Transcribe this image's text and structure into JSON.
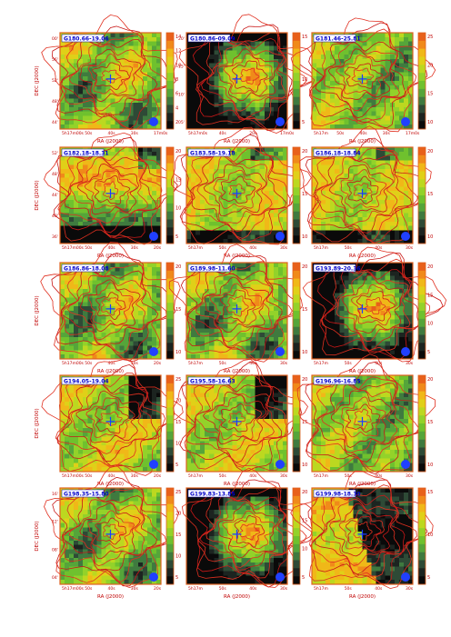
{
  "figure": {
    "x_axis_label": "RA (J2000)",
    "y_axis_label": "DEC (J2000)",
    "panels": [
      {
        "id": "G180.66-19.06",
        "colorbar_ticks": [
          "14",
          "12",
          "10",
          "8",
          "6",
          "4",
          "2"
        ],
        "ra_ticks": [
          "5h17m00s",
          "50s",
          "40s",
          "30s",
          "17m0s"
        ],
        "dec_ticks": [
          "00'",
          "56'",
          "52'",
          "48'",
          "44'"
        ],
        "pattern": "mixed"
      },
      {
        "id": "G180.86-09.09",
        "colorbar_ticks": [
          "15",
          "10",
          "5"
        ],
        "ra_ticks": [
          "5h17m0s",
          "40s",
          "20s",
          "17m0s"
        ],
        "dec_ticks": [
          "20'",
          "15'",
          "10'",
          "05'"
        ],
        "pattern": "core"
      },
      {
        "id": "G181.46-25.81",
        "colorbar_ticks": [
          "25",
          "20",
          "15",
          "10"
        ],
        "ra_ticks": [
          "5h17m",
          "50s",
          "40s",
          "30s",
          "17m0s"
        ],
        "dec_ticks": [
          "",
          "",
          "",
          ""
        ],
        "pattern": "green"
      },
      {
        "id": "G182.18-18.31",
        "colorbar_ticks": [
          "20",
          "15",
          "10",
          "5"
        ],
        "ra_ticks": [
          "5h17m00s",
          "50s",
          "40s",
          "30s",
          "20s"
        ],
        "dec_ticks": [
          "52'",
          "48'",
          "44'",
          "40'",
          "36'"
        ],
        "pattern": "band"
      },
      {
        "id": "G183.58-19.18",
        "colorbar_ticks": [
          "20",
          "15",
          "10"
        ],
        "ra_ticks": [
          "5h17m",
          "50s",
          "40s",
          "30s"
        ],
        "dec_ticks": [
          "",
          "",
          "",
          ""
        ],
        "pattern": "bottom-dark"
      },
      {
        "id": "G186.18-18.84",
        "colorbar_ticks": [
          "20",
          "15",
          "10"
        ],
        "ra_ticks": [
          "5h17m",
          "50s",
          "40s",
          "30s"
        ],
        "dec_ticks": [
          "",
          "",
          "",
          ""
        ],
        "pattern": "bottom-dark"
      },
      {
        "id": "G186.86-18.08",
        "colorbar_ticks": [
          "20",
          "15",
          "10"
        ],
        "ra_ticks": [
          "5h17m00s",
          "50s",
          "40s",
          "30s",
          "20s"
        ],
        "dec_ticks": [
          "",
          "",
          "",
          ""
        ],
        "pattern": "mixed"
      },
      {
        "id": "G189.98-11.60",
        "colorbar_ticks": [
          "20",
          "15",
          "10"
        ],
        "ra_ticks": [
          "5h17m",
          "50s",
          "40s",
          "30s"
        ],
        "dec_ticks": [
          "",
          "",
          "",
          ""
        ],
        "pattern": "mixed"
      },
      {
        "id": "G193.89-20.36",
        "colorbar_ticks": [
          "20",
          "15",
          "10",
          "5"
        ],
        "ra_ticks": [
          "5h17m",
          "50s",
          "40s",
          "30s"
        ],
        "dec_ticks": [
          "",
          "",
          "",
          ""
        ],
        "pattern": "core"
      },
      {
        "id": "G194.05-19.04",
        "colorbar_ticks": [
          "25",
          "20",
          "15",
          "10",
          "5"
        ],
        "ra_ticks": [
          "5h17m00s",
          "50s",
          "40s",
          "30s",
          "20s"
        ],
        "dec_ticks": [
          "",
          "",
          "",
          ""
        ],
        "pattern": "topright-dark"
      },
      {
        "id": "G195.58-16.63",
        "colorbar_ticks": [
          "20",
          "15",
          "10"
        ],
        "ra_ticks": [
          "5h17m",
          "50s",
          "40s",
          "30s"
        ],
        "dec_ticks": [
          "",
          "",
          "",
          ""
        ],
        "pattern": "topright-dark"
      },
      {
        "id": "G196.96-16.85",
        "colorbar_ticks": [
          "20",
          "15",
          "10"
        ],
        "ra_ticks": [
          "5h17m",
          "50s",
          "40s",
          "30s"
        ],
        "dec_ticks": [
          "",
          "",
          "",
          ""
        ],
        "pattern": "green"
      },
      {
        "id": "G198.35-15.80",
        "colorbar_ticks": [
          "25",
          "20",
          "15",
          "10",
          "5"
        ],
        "ra_ticks": [
          "5h17m00s",
          "50s",
          "40s",
          "30s",
          "20s"
        ],
        "dec_ticks": [
          "16'",
          "12'",
          "08'",
          "04'"
        ],
        "pattern": "mixed"
      },
      {
        "id": "G199.83-13.85",
        "colorbar_ticks": [
          "20",
          "15",
          "10",
          "5"
        ],
        "ra_ticks": [
          "5h17m",
          "50s",
          "40s",
          "30s"
        ],
        "dec_ticks": [
          "",
          "",
          "",
          ""
        ],
        "pattern": "core"
      },
      {
        "id": "G199.98-18.30",
        "colorbar_ticks": [
          "15",
          "10",
          "5"
        ],
        "ra_ticks": [
          "5h17m",
          "50s",
          "40s",
          "30s"
        ],
        "dec_ticks": [
          "",
          "",
          "",
          ""
        ],
        "pattern": "right-dark"
      }
    ]
  }
}
